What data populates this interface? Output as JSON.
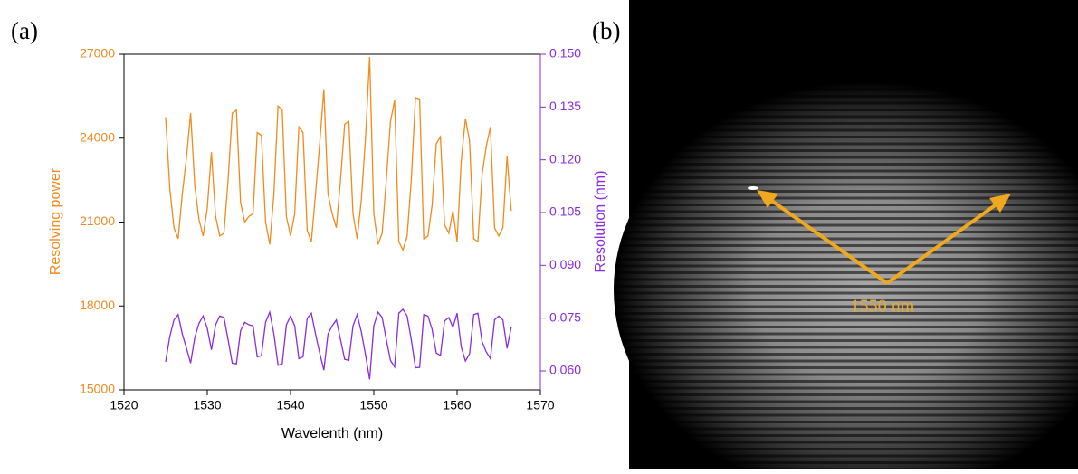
{
  "chart_data": {
    "type": "line",
    "panel_label": "(a)",
    "xlabel": "Wavelenth (nm)",
    "x": [
      1525.0,
      1525.5,
      1526.0,
      1526.5,
      1527.0,
      1527.5,
      1528.0,
      1528.5,
      1529.0,
      1529.5,
      1530.0,
      1530.5,
      1531.0,
      1531.5,
      1532.0,
      1532.5,
      1533.0,
      1533.5,
      1534.0,
      1534.5,
      1535.0,
      1535.5,
      1536.0,
      1536.5,
      1537.0,
      1537.5,
      1538.0,
      1538.5,
      1539.0,
      1539.5,
      1540.0,
      1540.5,
      1541.0,
      1541.5,
      1542.0,
      1542.5,
      1543.0,
      1543.5,
      1544.0,
      1544.5,
      1545.0,
      1545.5,
      1546.0,
      1546.5,
      1547.0,
      1547.5,
      1548.0,
      1548.5,
      1549.0,
      1549.5,
      1550.0,
      1550.5,
      1551.0,
      1551.5,
      1552.0,
      1552.5,
      1553.0,
      1553.5,
      1554.0,
      1554.5,
      1555.0,
      1555.5,
      1556.0,
      1556.5,
      1557.0,
      1557.5,
      1558.0,
      1558.5,
      1559.0,
      1559.5,
      1560.0,
      1560.5,
      1561.0,
      1561.5,
      1562.0,
      1562.5,
      1563.0,
      1563.5,
      1564.0,
      1564.5,
      1565.0,
      1565.5,
      1566.0,
      1566.5
    ],
    "series": [
      {
        "name": "Resolving power",
        "color": "#f28a1c",
        "axis": "y",
        "values": [
          24750,
          22200,
          20800,
          20400,
          22000,
          23300,
          24900,
          22300,
          21100,
          20500,
          21500,
          23500,
          21200,
          20500,
          20600,
          22500,
          24900,
          25000,
          21700,
          21000,
          21200,
          21300,
          24200,
          24100,
          21000,
          20200,
          22000,
          25150,
          25000,
          21200,
          20500,
          21300,
          24400,
          24200,
          20700,
          20300,
          22000,
          23800,
          25750,
          22000,
          21300,
          20800,
          22500,
          24500,
          24600,
          21300,
          20400,
          21800,
          24000,
          26900,
          21300,
          20200,
          20600,
          22500,
          24600,
          25350,
          20300,
          20000,
          20500,
          22500,
          25450,
          25400,
          20400,
          20500,
          21600,
          23800,
          24050,
          20900,
          20600,
          21400,
          20300,
          23200,
          24700,
          23900,
          20400,
          20300,
          22700,
          23700,
          24400,
          20800,
          20500,
          20800,
          23350,
          21400
        ]
      },
      {
        "name": "Resolution (nm)",
        "color": "#8a2be2",
        "axis": "y2",
        "values": [
          0.0626,
          0.0698,
          0.0745,
          0.076,
          0.0705,
          0.0665,
          0.0622,
          0.0695,
          0.0735,
          0.0756,
          0.0721,
          0.066,
          0.0731,
          0.0756,
          0.0752,
          0.0689,
          0.0622,
          0.062,
          0.0714,
          0.0738,
          0.0731,
          0.0728,
          0.064,
          0.0643,
          0.0738,
          0.0767,
          0.0705,
          0.0616,
          0.062,
          0.0731,
          0.0756,
          0.0728,
          0.0635,
          0.064,
          0.0749,
          0.0764,
          0.0705,
          0.0651,
          0.0602,
          0.0705,
          0.0728,
          0.0745,
          0.0689,
          0.0633,
          0.063,
          0.0728,
          0.076,
          0.0711,
          0.0646,
          0.0576,
          0.0728,
          0.0767,
          0.0752,
          0.0689,
          0.063,
          0.0611,
          0.0764,
          0.0775,
          0.0756,
          0.0689,
          0.0609,
          0.061,
          0.076,
          0.0756,
          0.0718,
          0.0651,
          0.0644,
          0.0742,
          0.0752,
          0.0724,
          0.0764,
          0.0668,
          0.0628,
          0.0649,
          0.076,
          0.0764,
          0.0683,
          0.0654,
          0.0635,
          0.0745,
          0.0756,
          0.0745,
          0.0664,
          0.0724
        ]
      }
    ],
    "xlim": [
      1520,
      1570
    ],
    "xticks": [
      1520,
      1530,
      1540,
      1550,
      1560,
      1570
    ],
    "ylim": [
      15000,
      27000
    ],
    "yticks": [
      15000,
      18000,
      21000,
      24000,
      27000
    ],
    "y2lim": [
      0.0546,
      0.15
    ],
    "y2ticks": [
      {
        "value": 0.06,
        "label": "0.060"
      },
      0.075,
      {
        "value": 0.09,
        "label": "0.090"
      },
      0.105,
      {
        "value": 0.12,
        "label": "0.120"
      },
      0.135,
      {
        "value": 0.15,
        "label": "0.150"
      }
    ]
  },
  "image_panel": {
    "label": "(b)",
    "annotation": "1550 nm"
  }
}
